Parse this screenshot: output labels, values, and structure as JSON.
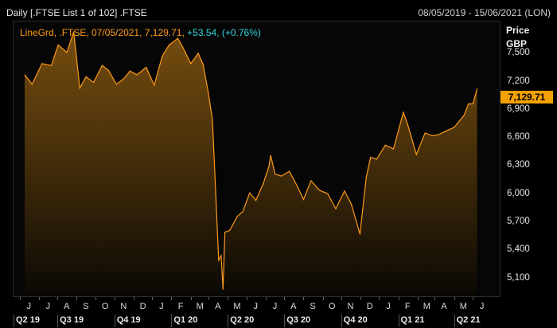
{
  "header": {
    "left_title": "Daily [.FTSE List 1 of 102] .FTSE",
    "date_range": "08/05/2019 - 15/06/2021 (LON)"
  },
  "legend": {
    "series_label": "LineGrd, .FTSE, 07/05/2021, 7,129.71,",
    "change": "+53.54, (+0.76%)"
  },
  "axis": {
    "price_label": "Price",
    "currency": "GBP",
    "last_value_tag": "7,129.71"
  },
  "colors": {
    "line": "#ff9a1a",
    "change_text": "#35d6e0",
    "last_tag_bg": "#f4a100"
  },
  "chart_data": {
    "type": "area",
    "title": "",
    "xlabel": "",
    "ylabel": "Price",
    "ylim": [
      4900,
      7850
    ],
    "yticks": [
      "7,500",
      "7,200",
      "6,900",
      "6,600",
      "6,300",
      "6,000",
      "5,700",
      "5,400",
      "5,100"
    ],
    "month_labels": [
      "J",
      "J",
      "A",
      "S",
      "O",
      "N",
      "D",
      "J",
      "F",
      "M",
      "A",
      "M",
      "J",
      "J",
      "A",
      "S",
      "O",
      "N",
      "D",
      "J",
      "F",
      "M",
      "A",
      "M",
      "J"
    ],
    "quarter_labels": [
      "Q2 19",
      "Q3 19",
      "Q4 19",
      "Q1 20",
      "Q2 20",
      "Q3 20",
      "Q4 20",
      "Q1 21",
      "Q2 21"
    ],
    "x": [
      "2019-05-08",
      "2019-05-20",
      "2019-06-05",
      "2019-06-20",
      "2019-07-01",
      "2019-07-15",
      "2019-07-26",
      "2019-08-05",
      "2019-08-15",
      "2019-08-27",
      "2019-09-10",
      "2019-09-20",
      "2019-10-03",
      "2019-10-15",
      "2019-10-25",
      "2019-11-05",
      "2019-11-20",
      "2019-12-03",
      "2019-12-16",
      "2019-12-27",
      "2020-01-10",
      "2020-01-17",
      "2020-01-31",
      "2020-02-12",
      "2020-02-20",
      "2020-02-28",
      "2020-03-06",
      "2020-03-12",
      "2020-03-16",
      "2020-03-20",
      "2020-03-23",
      "2020-03-26",
      "2020-04-03",
      "2020-04-15",
      "2020-04-24",
      "2020-05-05",
      "2020-05-15",
      "2020-05-27",
      "2020-06-05",
      "2020-06-08",
      "2020-06-15",
      "2020-06-25",
      "2020-07-08",
      "2020-07-20",
      "2020-07-31",
      "2020-08-12",
      "2020-08-25",
      "2020-09-08",
      "2020-09-21",
      "2020-10-05",
      "2020-10-16",
      "2020-10-30",
      "2020-11-09",
      "2020-11-16",
      "2020-11-26",
      "2020-12-10",
      "2020-12-23",
      "2021-01-08",
      "2021-01-15",
      "2021-01-29",
      "2021-02-12",
      "2021-02-24",
      "2021-03-05",
      "2021-03-18",
      "2021-03-31",
      "2021-04-16",
      "2021-04-23",
      "2021-04-30",
      "2021-05-07"
    ],
    "values": [
      7280,
      7180,
      7400,
      7380,
      7600,
      7520,
      7740,
      7140,
      7260,
      7200,
      7380,
      7330,
      7180,
      7240,
      7320,
      7280,
      7360,
      7170,
      7480,
      7600,
      7670,
      7590,
      7400,
      7510,
      7390,
      7100,
      6800,
      5900,
      5300,
      5350,
      4990,
      5600,
      5620,
      5770,
      5820,
      6020,
      5940,
      6120,
      6300,
      6420,
      6220,
      6200,
      6250,
      6100,
      5950,
      6150,
      6050,
      6010,
      5850,
      6040,
      5900,
      5580,
      6180,
      6400,
      6380,
      6530,
      6490,
      6880,
      6750,
      6430,
      6660,
      6630,
      6640,
      6680,
      6720,
      6850,
      6970,
      6970,
      7129.71
    ]
  }
}
